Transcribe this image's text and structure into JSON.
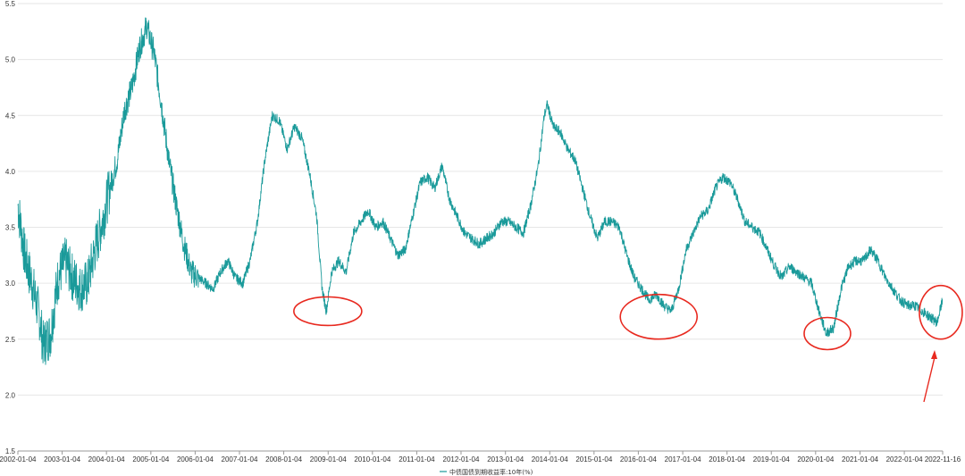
{
  "chart_data": {
    "type": "line",
    "title": "",
    "xlabel": "",
    "ylabel": "",
    "ylim": [
      1.5,
      5.5
    ],
    "yticks": [
      "1.5",
      "2.0",
      "2.5",
      "3.0",
      "3.5",
      "4.0",
      "4.5",
      "5.0",
      "5.5"
    ],
    "xticks": [
      "2002-01-04",
      "2003-01-04",
      "2004-01-04",
      "2005-01-04",
      "2006-01-04",
      "2007-01-04",
      "2008-01-04",
      "2009-01-04",
      "2010-01-04",
      "2011-01-04",
      "2012-01-04",
      "2013-01-04",
      "2014-01-04",
      "2015-01-04",
      "2016-01-04",
      "2017-01-04",
      "2018-01-04",
      "2019-01-04",
      "2020-01-04",
      "2021-01-04",
      "2022-01-04",
      "2022-11-16"
    ],
    "grid": true,
    "legend": "bottom-center",
    "line_color": "#1a9a9a",
    "annotation_color": "#e8291f",
    "series": [
      {
        "name": "中债国债到期收益率:10年(%)",
        "x": [
          "2002-01-04",
          "2002-03-01",
          "2002-05-01",
          "2002-07-01",
          "2002-08-01",
          "2002-10-01",
          "2002-12-01",
          "2003-02-01",
          "2003-04-01",
          "2003-06-01",
          "2003-08-01",
          "2003-10-01",
          "2003-12-01",
          "2004-02-01",
          "2004-04-01",
          "2004-06-01",
          "2004-08-01",
          "2004-10-01",
          "2004-12-01",
          "2005-02-01",
          "2005-04-01",
          "2005-06-01",
          "2005-08-01",
          "2005-10-01",
          "2005-12-01",
          "2006-02-01",
          "2006-04-01",
          "2006-06-01",
          "2006-08-01",
          "2006-10-01",
          "2006-12-01",
          "2007-02-01",
          "2007-04-01",
          "2007-06-01",
          "2007-08-01",
          "2007-10-01",
          "2007-12-01",
          "2008-02-01",
          "2008-04-01",
          "2008-06-01",
          "2008-08-01",
          "2008-10-01",
          "2008-11-15",
          "2008-12-20",
          "2009-02-01",
          "2009-04-01",
          "2009-06-01",
          "2009-08-01",
          "2009-10-01",
          "2009-12-01",
          "2010-02-01",
          "2010-04-01",
          "2010-06-01",
          "2010-08-01",
          "2010-10-01",
          "2010-12-01",
          "2011-02-01",
          "2011-04-01",
          "2011-06-01",
          "2011-08-01",
          "2011-10-01",
          "2011-12-01",
          "2012-02-01",
          "2012-04-01",
          "2012-06-01",
          "2012-08-01",
          "2012-10-01",
          "2012-12-01",
          "2013-02-01",
          "2013-04-01",
          "2013-06-01",
          "2013-08-01",
          "2013-10-01",
          "2013-11-20",
          "2013-12-15",
          "2014-02-01",
          "2014-04-01",
          "2014-06-01",
          "2014-08-01",
          "2014-10-01",
          "2014-12-01",
          "2015-02-01",
          "2015-04-01",
          "2015-06-01",
          "2015-08-01",
          "2015-10-01",
          "2015-12-01",
          "2016-02-01",
          "2016-04-01",
          "2016-06-01",
          "2016-08-01",
          "2016-10-01",
          "2016-12-01",
          "2017-02-01",
          "2017-04-01",
          "2017-06-01",
          "2017-08-01",
          "2017-10-01",
          "2017-12-01",
          "2018-02-01",
          "2018-04-01",
          "2018-06-01",
          "2018-08-01",
          "2018-10-01",
          "2018-12-01",
          "2019-02-01",
          "2019-04-01",
          "2019-06-01",
          "2019-08-01",
          "2019-10-01",
          "2019-12-01",
          "2020-02-01",
          "2020-04-01",
          "2020-06-01",
          "2020-08-01",
          "2020-10-01",
          "2020-12-01",
          "2021-02-01",
          "2021-04-01",
          "2021-06-01",
          "2021-08-01",
          "2021-10-01",
          "2021-12-01",
          "2022-02-01",
          "2022-04-01",
          "2022-06-01",
          "2022-08-01",
          "2022-10-01",
          "2022-11-16"
        ],
        "values": [
          3.7,
          3.25,
          3.0,
          2.7,
          2.45,
          2.55,
          3.05,
          3.2,
          3.05,
          2.95,
          3.0,
          3.3,
          3.55,
          3.85,
          4.1,
          4.55,
          4.75,
          5.1,
          5.3,
          5.05,
          4.6,
          4.1,
          3.7,
          3.35,
          3.1,
          3.05,
          3.0,
          2.95,
          3.1,
          3.2,
          3.05,
          3.0,
          3.2,
          3.55,
          4.1,
          4.5,
          4.45,
          4.2,
          4.4,
          4.3,
          4.0,
          3.6,
          2.95,
          2.75,
          3.1,
          3.2,
          3.1,
          3.45,
          3.55,
          3.65,
          3.5,
          3.55,
          3.4,
          3.25,
          3.3,
          3.6,
          3.9,
          3.95,
          3.85,
          4.05,
          3.75,
          3.6,
          3.45,
          3.4,
          3.35,
          3.4,
          3.45,
          3.55,
          3.55,
          3.5,
          3.45,
          3.7,
          4.05,
          4.5,
          4.6,
          4.4,
          4.35,
          4.2,
          4.1,
          3.85,
          3.6,
          3.4,
          3.55,
          3.55,
          3.5,
          3.25,
          3.05,
          2.95,
          2.85,
          2.9,
          2.8,
          2.75,
          2.95,
          3.3,
          3.45,
          3.6,
          3.65,
          3.85,
          3.95,
          3.9,
          3.75,
          3.55,
          3.5,
          3.45,
          3.3,
          3.15,
          3.05,
          3.15,
          3.1,
          3.05,
          3.0,
          2.75,
          2.55,
          2.6,
          2.95,
          3.15,
          3.2,
          3.2,
          3.3,
          3.2,
          3.05,
          2.95,
          2.85,
          2.8,
          2.8,
          2.75,
          2.7,
          2.65,
          2.85
        ]
      }
    ]
  }
}
